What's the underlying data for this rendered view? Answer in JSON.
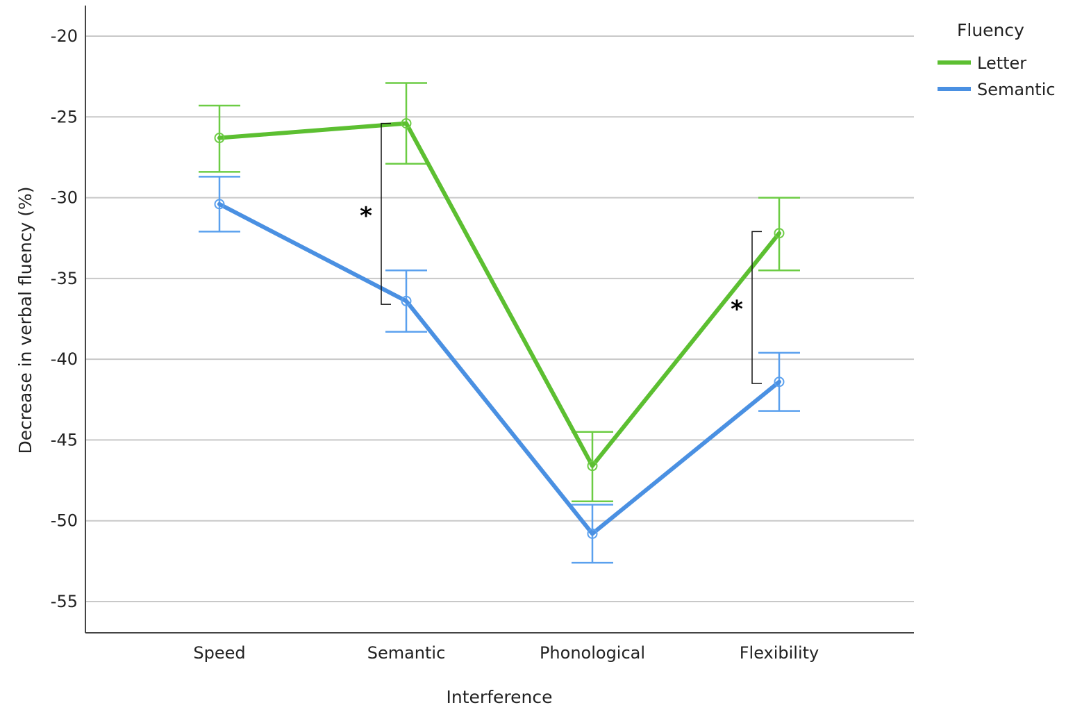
{
  "chart_data": {
    "type": "line",
    "title": "",
    "xlabel": "Interference",
    "ylabel": "Decrease in verbal fluency (%)",
    "categories": [
      "Speed",
      "Semantic",
      "Phonological",
      "Flexibility"
    ],
    "ylim": [
      -57,
      -18
    ],
    "yticks": [
      -20,
      -25,
      -30,
      -35,
      -40,
      -45,
      -50,
      -55
    ],
    "ytick_labels": [
      "-20",
      "-25",
      "-30",
      "-35",
      "-40",
      "-45",
      "-50",
      "-55"
    ],
    "grid": "horizontal",
    "legend": {
      "title": "Fluency",
      "placement": "top-right"
    },
    "series": [
      {
        "name": "Letter",
        "color": "#5cbf31",
        "values": [
          -26.3,
          -25.4,
          -46.6,
          -32.2
        ],
        "error_low": [
          -28.4,
          -27.9,
          -48.8,
          -34.5
        ],
        "error_high": [
          -24.3,
          -22.9,
          -44.5,
          -30.0
        ]
      },
      {
        "name": "Semantic",
        "color": "#4a90e2",
        "values": [
          -30.4,
          -36.4,
          -50.8,
          -41.4
        ],
        "error_low": [
          -32.1,
          -38.3,
          -52.6,
          -43.2
        ],
        "error_high": [
          -28.7,
          -34.5,
          -49.0,
          -39.6
        ]
      }
    ],
    "annotations": [
      {
        "text": "*",
        "category": "Semantic",
        "from": -25.4,
        "to": -36.6
      },
      {
        "text": "*",
        "category": "Flexibility",
        "from": -32.1,
        "to": -41.5
      }
    ]
  }
}
